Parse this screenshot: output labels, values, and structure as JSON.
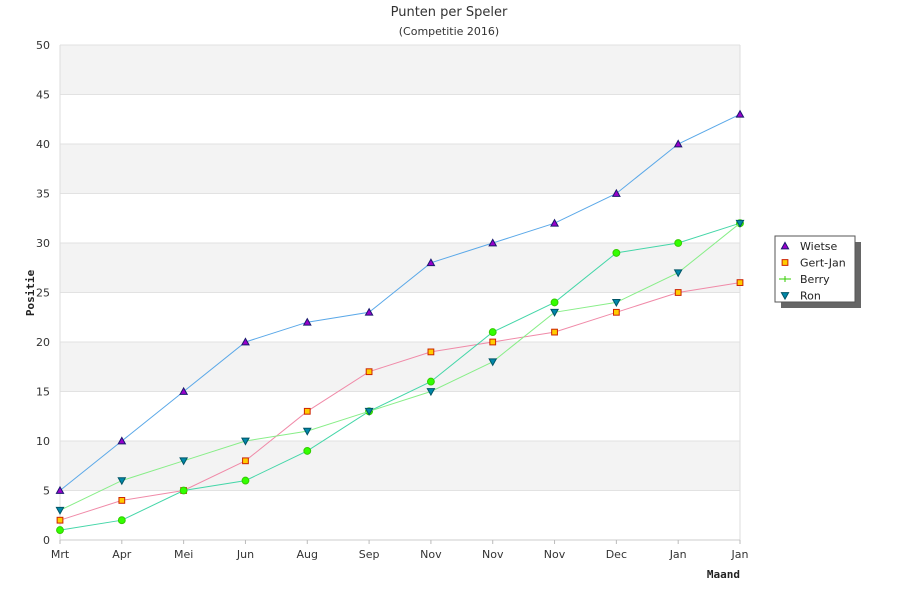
{
  "chart_data": {
    "type": "line",
    "title": "Punten per Speler",
    "subtitle": "(Competitie 2016)",
    "xlabel": "Maand",
    "ylabel": "Positie",
    "categories": [
      "Mrt",
      "Apr",
      "Mei",
      "Jun",
      "Aug",
      "Sep",
      "Nov",
      "Nov",
      "Nov",
      "Dec",
      "Jan",
      "Jan"
    ],
    "ylim": [
      0,
      50
    ],
    "yticks": [
      0,
      5,
      10,
      15,
      20,
      25,
      30,
      35,
      40,
      45,
      50
    ],
    "grid": true,
    "legend_position": "right",
    "series": [
      {
        "name": "Wietse",
        "values": [
          5,
          10,
          15,
          20,
          22,
          23,
          28,
          30,
          32,
          35,
          40,
          43
        ],
        "line_color": "#5aa8e8",
        "marker": "triangle-up",
        "marker_fill": "#9900cc",
        "marker_stroke": "#1a1a6e"
      },
      {
        "name": "Gert-Jan",
        "values": [
          2,
          4,
          5,
          8,
          13,
          17,
          19,
          20,
          21,
          23,
          25,
          26
        ],
        "line_color": "#f08aa8",
        "marker": "square",
        "marker_fill": "#ffcc00",
        "marker_stroke": "#cc2200"
      },
      {
        "name": "Berry",
        "values": [
          1,
          2,
          5,
          6,
          9,
          13,
          16,
          21,
          24,
          29,
          30,
          32
        ],
        "line_color": "#44d6a8",
        "marker": "circle",
        "marker_fill": "#33ff00",
        "marker_stroke": "#33cc00"
      },
      {
        "name": "Ron",
        "values": [
          3,
          6,
          8,
          10,
          11,
          13,
          15,
          18,
          23,
          24,
          27,
          32
        ],
        "line_color": "#88ee88",
        "marker": "triangle-down",
        "marker_fill": "#0088aa",
        "marker_stroke": "#005566"
      }
    ]
  }
}
